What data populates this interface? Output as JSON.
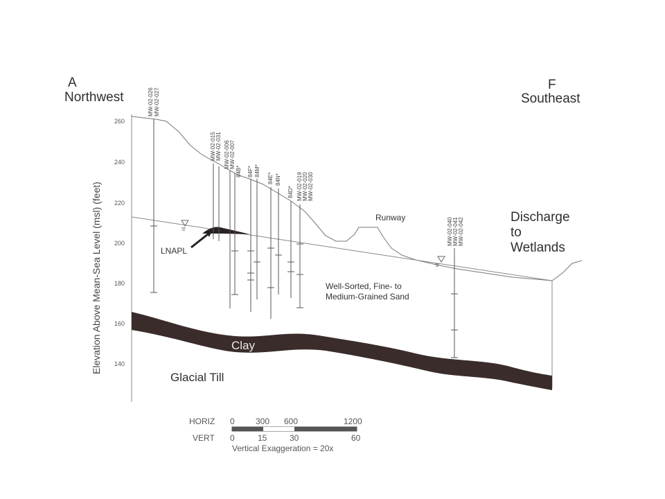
{
  "section": {
    "start_letter": "A",
    "start_direction": "Northwest",
    "end_letter": "F",
    "end_direction": "Southeast"
  },
  "y_axis": {
    "label": "Elevation Above Mean-Sea Level (msl) (feet)",
    "ticks": [
      260,
      240,
      220,
      200,
      180,
      160,
      140
    ]
  },
  "labels": {
    "runway": "Runway",
    "discharge_line1": "Discharge",
    "discharge_line2": "to",
    "discharge_line3": "Wetlands",
    "lnapl": "LNAPL",
    "sand_line1": "Well-Sorted, Fine- to",
    "sand_line2": "Medium-Grained Sand",
    "clay": "Clay",
    "glacial_till": "Glacial Till"
  },
  "wells": [
    {
      "id": "mw-026-027",
      "names": [
        "MW-02-026",
        "MW-02-027"
      ]
    },
    {
      "id": "mw-015-031",
      "names": [
        "MW-02-015",
        "MW-02-031"
      ]
    },
    {
      "id": "mw-006-007",
      "names": [
        "MW-02-006",
        "MW-02-007"
      ]
    },
    {
      "id": "84b",
      "names": [
        "84B*"
      ]
    },
    {
      "id": "84f-84m",
      "names": [
        "84F*",
        "84M*"
      ]
    },
    {
      "id": "84e-84n",
      "names": [
        "84E*",
        "84N*"
      ]
    },
    {
      "id": "84d",
      "names": [
        "84D*"
      ]
    },
    {
      "id": "mw-019-030",
      "names": [
        "MW-02-019",
        "MW-02-020",
        "MW-02-030"
      ]
    },
    {
      "id": "mw-040-042",
      "names": [
        "MW-02-040",
        "MW-02-041",
        "MW-02-042"
      ]
    }
  ],
  "scale_bar": {
    "horiz_label": "HORIZ",
    "horiz_values": [
      "0",
      "300",
      "600",
      "1200"
    ],
    "vert_label": "VERT",
    "vert_values": [
      "0",
      "15",
      "30",
      "60"
    ],
    "exaggeration": "Vertical Exaggeration = 20x"
  },
  "colors": {
    "clay": "#3b2c2c",
    "line": "#777777",
    "text": "#2e2e2e"
  }
}
